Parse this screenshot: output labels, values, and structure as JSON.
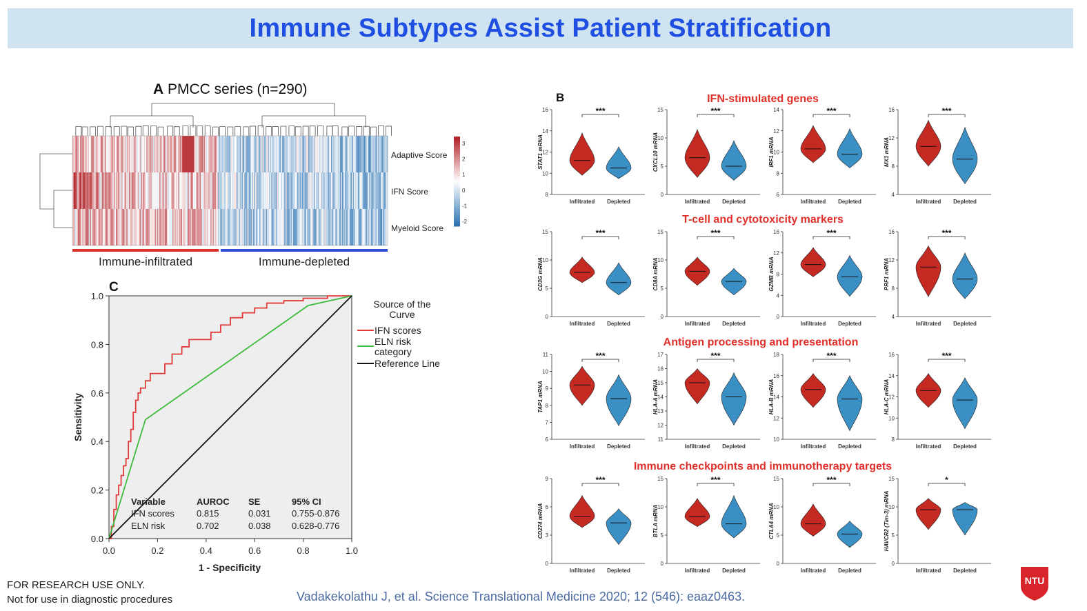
{
  "slide": {
    "title": "Immune Subtypes Assist Patient Stratification",
    "footer_line1": "FOR RESEARCH USE ONLY.",
    "footer_line2": "Not for use in diagnostic procedures",
    "citation": "Vadakekolathu  J, et al. Science Translational  Medicine  2020; 12 (546): eaaz0463.",
    "logo_text": "NTU",
    "colors": {
      "title": "#1f4fe0",
      "title_bg": "#cfe3f1",
      "red": "#c42a22",
      "blue": "#3a8fc4",
      "section_title": "#e0302a"
    }
  },
  "panel_a": {
    "letter": "A",
    "title": "PMCC series (n=290)",
    "rows": [
      "Adaptive Score",
      "IFN Score",
      "Myeloid Score"
    ],
    "colorbar_ticks": [
      "3",
      "2",
      "1",
      "0",
      "-1",
      "-2"
    ],
    "groups": [
      "Immune-infiltrated",
      "Immune-depleted"
    ]
  },
  "panel_c": {
    "letter": "C",
    "chart_data": {
      "type": "line",
      "xlabel": "1 - Specificity",
      "ylabel": "Sensitivity",
      "xlim": [
        0,
        1
      ],
      "ylim": [
        0,
        1
      ],
      "x_ticks": [
        "0.0",
        "0.2",
        "0.4",
        "0.6",
        "0.8",
        "1.0"
      ],
      "y_ticks": [
        "0.0",
        "0.2",
        "0.4",
        "0.6",
        "0.8",
        "1.0"
      ],
      "legend_title": "Source of the Curve",
      "legend_title_lines": [
        "Source of the",
        "Curve"
      ],
      "series": [
        {
          "name": "IFN scores",
          "color": "#e03a3a",
          "points": [
            [
              0,
              0
            ],
            [
              0.01,
              0.05
            ],
            [
              0.02,
              0.12
            ],
            [
              0.03,
              0.18
            ],
            [
              0.04,
              0.22
            ],
            [
              0.05,
              0.26
            ],
            [
              0.06,
              0.3
            ],
            [
              0.07,
              0.33
            ],
            [
              0.08,
              0.4
            ],
            [
              0.09,
              0.45
            ],
            [
              0.1,
              0.52
            ],
            [
              0.11,
              0.57
            ],
            [
              0.12,
              0.6
            ],
            [
              0.13,
              0.62
            ],
            [
              0.15,
              0.65
            ],
            [
              0.17,
              0.68
            ],
            [
              0.2,
              0.68
            ],
            [
              0.23,
              0.72
            ],
            [
              0.26,
              0.76
            ],
            [
              0.3,
              0.79
            ],
            [
              0.33,
              0.82
            ],
            [
              0.38,
              0.82
            ],
            [
              0.42,
              0.85
            ],
            [
              0.46,
              0.88
            ],
            [
              0.5,
              0.91
            ],
            [
              0.55,
              0.93
            ],
            [
              0.6,
              0.95
            ],
            [
              0.65,
              0.97
            ],
            [
              0.72,
              0.98
            ],
            [
              0.8,
              0.99
            ],
            [
              0.9,
              1.0
            ],
            [
              1.0,
              1.0
            ]
          ]
        },
        {
          "name": "ELN risk category",
          "legend_lines": [
            "ELN risk",
            "category"
          ],
          "color": "#3dbb3d",
          "points": [
            [
              0,
              0
            ],
            [
              0.15,
              0.49
            ],
            [
              0.82,
              0.96
            ],
            [
              1,
              1
            ]
          ]
        },
        {
          "name": "Reference Line",
          "color": "#111111",
          "points": [
            [
              0,
              0
            ],
            [
              1,
              1
            ]
          ]
        }
      ]
    },
    "table": {
      "headers": [
        "Variable",
        "AUROC",
        "SE",
        "95%  CI"
      ],
      "rows": [
        [
          "IFN  scores",
          "0.815",
          "0.031",
          "0.755-0.876"
        ],
        [
          "ELN  risk",
          "0.702",
          "0.038",
          "0.628-0.776"
        ]
      ]
    }
  },
  "panel_b": {
    "letter": "B",
    "x_labels": [
      "Infiltrated",
      "Depleted"
    ],
    "sections": [
      {
        "title": "IFN-stimulated genes",
        "plots": [
          {
            "gene": "STAT1 mRNA",
            "ticks": [
              "8",
              "10",
              "12",
              "14",
              "16"
            ],
            "ymin": 8,
            "ymax": 16,
            "sig": "***",
            "infil": {
              "median": 11.2,
              "low": 9.8,
              "high": 13.8
            },
            "depl": {
              "median": 10.5,
              "low": 9.5,
              "high": 12.5
            }
          },
          {
            "gene": "CXCL10 mRNA",
            "ticks": [
              "0",
              "5",
              "10",
              "15"
            ],
            "ymin": 0,
            "ymax": 15,
            "sig": "***",
            "infil": {
              "median": 6.5,
              "low": 3,
              "high": 11.5
            },
            "depl": {
              "median": 5.0,
              "low": 2.5,
              "high": 9.5
            }
          },
          {
            "gene": "IRF1 mRNA",
            "ticks": [
              "6",
              "8",
              "10",
              "12",
              "14"
            ],
            "ymin": 6,
            "ymax": 14,
            "sig": "***",
            "infil": {
              "median": 10.3,
              "low": 9.0,
              "high": 12.5
            },
            "depl": {
              "median": 9.8,
              "low": 8.5,
              "high": 12.2
            }
          },
          {
            "gene": "MX1 mRNA",
            "ticks": [
              "4",
              "8",
              "12",
              "16"
            ],
            "ymin": 4,
            "ymax": 16,
            "sig": "***",
            "infil": {
              "median": 10.8,
              "low": 8.0,
              "high": 14.5
            },
            "depl": {
              "median": 9.0,
              "low": 5.5,
              "high": 13.5
            }
          }
        ]
      },
      {
        "title": "T-cell and cytotoxicity markers",
        "plots": [
          {
            "gene": "CD3G mRNA",
            "ticks": [
              "0",
              "5",
              "10",
              "15"
            ],
            "ymin": 0,
            "ymax": 15,
            "sig": "***",
            "infil": {
              "median": 7.8,
              "low": 6.0,
              "high": 10.5
            },
            "depl": {
              "median": 6.0,
              "low": 3.8,
              "high": 9.5
            }
          },
          {
            "gene": "CD8A mRNA",
            "ticks": [
              "0",
              "5",
              "10",
              "15"
            ],
            "ymin": 0,
            "ymax": 15,
            "sig": "***",
            "infil": {
              "median": 8.0,
              "low": 5.5,
              "high": 10.5
            },
            "depl": {
              "median": 6.2,
              "low": 3.8,
              "high": 8.5
            }
          },
          {
            "gene": "GZMB mRNA",
            "ticks": [
              "0",
              "4",
              "8",
              "12",
              "16"
            ],
            "ymin": 0,
            "ymax": 16,
            "sig": "***",
            "infil": {
              "median": 9.8,
              "low": 7.5,
              "high": 13.0
            },
            "depl": {
              "median": 7.5,
              "low": 3.8,
              "high": 11.5
            }
          },
          {
            "gene": "PRF1 mRNA",
            "ticks": [
              "4",
              "8",
              "12",
              "16"
            ],
            "ymin": 4,
            "ymax": 16,
            "sig": "***",
            "infil": {
              "median": 11.0,
              "low": 6.8,
              "high": 14.0
            },
            "depl": {
              "median": 9.3,
              "low": 6.5,
              "high": 13.0
            }
          }
        ]
      },
      {
        "title": "Antigen processing  and presentation",
        "plots": [
          {
            "gene": "TAP1 mRNA",
            "ticks": [
              "6",
              "7",
              "8",
              "9",
              "10",
              "11"
            ],
            "ymin": 6,
            "ymax": 11,
            "sig": "***",
            "infil": {
              "median": 9.2,
              "low": 8.0,
              "high": 10.3
            },
            "depl": {
              "median": 8.4,
              "low": 6.8,
              "high": 9.8
            }
          },
          {
            "gene": "HLA-A mRNA",
            "ticks": [
              "11",
              "12",
              "13",
              "14",
              "15",
              "16",
              "17"
            ],
            "ymin": 11,
            "ymax": 17,
            "sig": "***",
            "infil": {
              "median": 15.0,
              "low": 13.5,
              "high": 16.0
            },
            "depl": {
              "median": 14.0,
              "low": 12.0,
              "high": 15.7
            }
          },
          {
            "gene": "HLA-B mRNA",
            "ticks": [
              "10",
              "12",
              "14",
              "16",
              "18"
            ],
            "ymin": 10,
            "ymax": 18,
            "sig": "***",
            "infil": {
              "median": 14.7,
              "low": 13.0,
              "high": 16.2
            },
            "depl": {
              "median": 13.8,
              "low": 10.8,
              "high": 16.0
            }
          },
          {
            "gene": "HLA-C mRNA",
            "ticks": [
              "8",
              "10",
              "12",
              "14",
              "16"
            ],
            "ymin": 8,
            "ymax": 16,
            "sig": "***",
            "infil": {
              "median": 12.6,
              "low": 11.0,
              "high": 14.2
            },
            "depl": {
              "median": 11.7,
              "low": 9.0,
              "high": 13.8
            }
          }
        ]
      },
      {
        "title": "Immune checkpoints and immunotherapy targets",
        "plots": [
          {
            "gene": "CD274 mRNA",
            "ticks": [
              "0",
              "3",
              "6",
              "9"
            ],
            "ymin": 0,
            "ymax": 9,
            "sig": "***",
            "infil": {
              "median": 5.0,
              "low": 3.8,
              "high": 7.2
            },
            "depl": {
              "median": 4.3,
              "low": 2.0,
              "high": 5.8
            }
          },
          {
            "gene": "BTLA mRNA",
            "ticks": [
              "0",
              "5",
              "10",
              "15"
            ],
            "ymin": 0,
            "ymax": 15,
            "sig": "***",
            "infil": {
              "median": 8.3,
              "low": 6.5,
              "high": 11.5
            },
            "depl": {
              "median": 7.0,
              "low": 4.5,
              "high": 12.0
            }
          },
          {
            "gene": "CTLA4 mRNA",
            "ticks": [
              "0",
              "5",
              "10",
              "15"
            ],
            "ymin": 0,
            "ymax": 15,
            "sig": "***",
            "infil": {
              "median": 7.0,
              "low": 4.8,
              "high": 10.5
            },
            "depl": {
              "median": 5.2,
              "low": 2.8,
              "high": 7.5
            }
          },
          {
            "gene": "HAVCR2 (Tim-3) mRNA",
            "ticks": [
              "0",
              "5",
              "10",
              "15"
            ],
            "ymin": 0,
            "ymax": 15,
            "sig": "*",
            "infil": {
              "median": 9.5,
              "low": 6.0,
              "high": 11.5
            },
            "depl": {
              "median": 9.5,
              "low": 5.0,
              "high": 10.8
            }
          }
        ]
      }
    ]
  }
}
